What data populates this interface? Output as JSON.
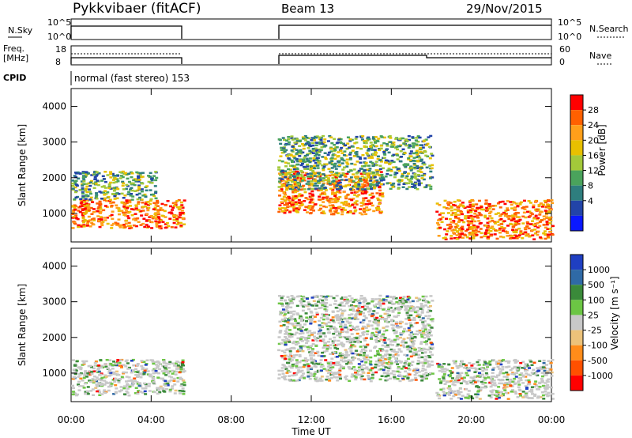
{
  "header": {
    "radar": "Pykkvibaer (fitACF)",
    "beam": "Beam 13",
    "date": "29/Nov/2015"
  },
  "panels": {
    "nsky": {
      "label": "N.Sky",
      "right_label": "N.Search",
      "left_ticks": [
        "10^5",
        "10^0"
      ],
      "right_ticks": [
        "10^5",
        "10^0"
      ]
    },
    "freq": {
      "label_line1": "Freq.",
      "label_line2": "[MHz]",
      "right_label": "Nave",
      "left_ticks": [
        "18",
        "8"
      ],
      "right_ticks": [
        "60",
        "0"
      ]
    },
    "cpid": {
      "label": "CPID",
      "value": "normal (fast stereo) 153"
    }
  },
  "chart_data": [
    {
      "type": "heatmap",
      "name": "power",
      "ylabel": "Slant Range [km]",
      "yticks": [
        1000,
        2000,
        3000,
        4000
      ],
      "ylim": [
        200,
        4500
      ],
      "colorbar": {
        "label": "Power [dB]",
        "ticks": [
          "28",
          "24",
          "20",
          "16",
          "12",
          "8",
          "4"
        ],
        "colors": [
          "#ff0000",
          "#ff6000",
          "#ff9f1a",
          "#e8c000",
          "#a3c93a",
          "#4aa35c",
          "#2e7e7e",
          "#2244a8",
          "#0a18ff"
        ]
      },
      "regions": [
        {
          "x": [
            0.0,
            5.6
          ],
          "y": [
            600,
            1400
          ],
          "level": "high"
        },
        {
          "x": [
            0.0,
            4.2
          ],
          "y": [
            1400,
            2200
          ],
          "level": "mid"
        },
        {
          "x": [
            10.3,
            15.5
          ],
          "y": [
            1000,
            2200
          ],
          "level": "high"
        },
        {
          "x": [
            10.3,
            18.0
          ],
          "y": [
            1700,
            3200
          ],
          "level": "mid"
        },
        {
          "x": [
            18.2,
            24.0
          ],
          "y": [
            300,
            1400
          ],
          "level": "high"
        }
      ]
    },
    {
      "type": "heatmap",
      "name": "velocity",
      "ylabel": "Slant Range [km]",
      "yticks": [
        1000,
        2000,
        3000,
        4000
      ],
      "ylim": [
        200,
        4500
      ],
      "colorbar": {
        "label": "Velocity [m s⁻¹]",
        "ticks": [
          "1000",
          "500",
          "100",
          "25",
          "-25",
          "-100",
          "-500",
          "-1000"
        ],
        "colors": [
          "#1f3fc2",
          "#2f6aa6",
          "#3a8a3a",
          "#6cc644",
          "#c8c8c8",
          "#ecc27a",
          "#ff8c1a",
          "#ff5000",
          "#ff0000"
        ]
      },
      "regions": [
        {
          "x": [
            0.0,
            5.6
          ],
          "y": [
            400,
            1400
          ],
          "level": "mixed"
        },
        {
          "x": [
            10.3,
            18.0
          ],
          "y": [
            800,
            3200
          ],
          "level": "mixed"
        },
        {
          "x": [
            18.2,
            24.0
          ],
          "y": [
            300,
            1400
          ],
          "level": "mixed"
        }
      ]
    }
  ],
  "xaxis": {
    "label": "Time UT",
    "ticks": [
      "00:00",
      "04:00",
      "08:00",
      "12:00",
      "16:00",
      "20:00",
      "00:00"
    ]
  }
}
